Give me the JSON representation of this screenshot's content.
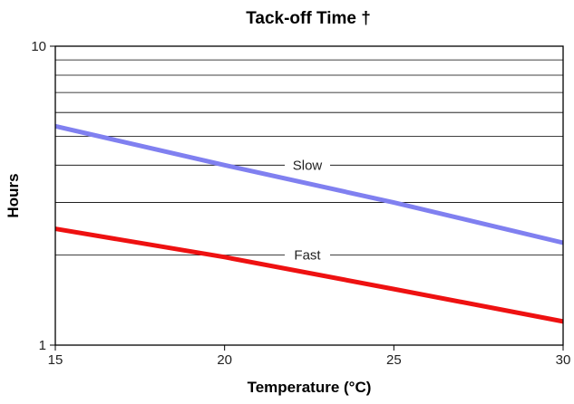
{
  "chart_data": {
    "type": "line",
    "title": "Tack-off Time †",
    "xlabel": "Temperature (°C)",
    "ylabel": "Hours",
    "xlim": [
      15,
      30
    ],
    "ylim": [
      1,
      10
    ],
    "y_scale": "log",
    "x_ticks": [
      "15",
      "20",
      "25",
      "30"
    ],
    "y_ticks": [
      "1",
      "10"
    ],
    "grid": "horizontal",
    "series": [
      {
        "name": "Slow",
        "color": "#8080f0",
        "x": [
          15,
          20,
          25,
          30
        ],
        "y": [
          5.4,
          4.0,
          3.0,
          2.2
        ]
      },
      {
        "name": "Fast",
        "color": "#ee1111",
        "x": [
          15,
          20,
          25,
          30
        ],
        "y": [
          2.45,
          1.97,
          1.54,
          1.2
        ]
      }
    ]
  }
}
